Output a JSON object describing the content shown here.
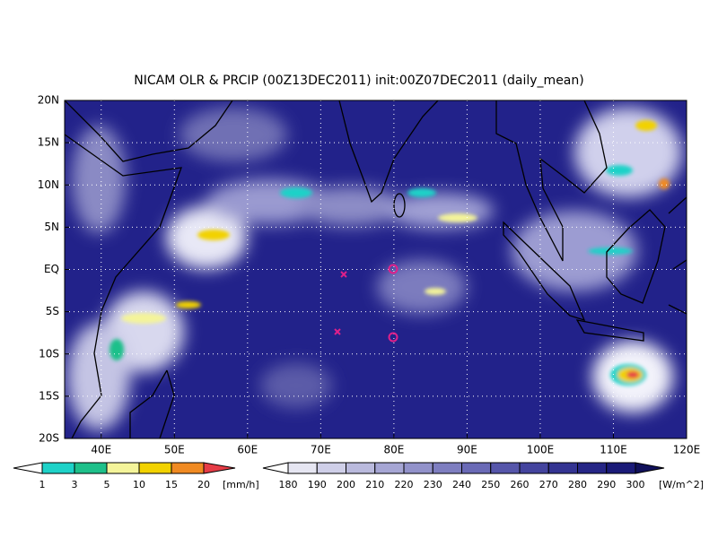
{
  "map": {
    "title": "NICAM OLR & PRCIP (00Z13DEC2011) init:00Z07DEC2011 (daily_mean)",
    "lonlim": [
      35,
      120
    ],
    "latlim": [
      -20,
      20
    ],
    "lonticks": [
      {
        "value": 40,
        "label": "40E"
      },
      {
        "value": 50,
        "label": "50E"
      },
      {
        "value": 60,
        "label": "60E"
      },
      {
        "value": 70,
        "label": "70E"
      },
      {
        "value": 80,
        "label": "80E"
      },
      {
        "value": 90,
        "label": "90E"
      },
      {
        "value": 100,
        "label": "100E"
      },
      {
        "value": 110,
        "label": "110E"
      },
      {
        "value": 120,
        "label": "120E"
      }
    ],
    "latticks": [
      {
        "value": -20,
        "label": "20S"
      },
      {
        "value": -15,
        "label": "15S"
      },
      {
        "value": -10,
        "label": "10S"
      },
      {
        "value": -5,
        "label": "5S"
      },
      {
        "value": 0,
        "label": "EQ"
      },
      {
        "value": 5,
        "label": "5N"
      },
      {
        "value": 10,
        "label": "10N"
      },
      {
        "value": 15,
        "label": "15N"
      },
      {
        "value": 20,
        "label": "20N"
      }
    ],
    "grid": true
  },
  "precip_colorbar": {
    "levels": [
      1,
      3,
      5,
      10,
      15,
      20
    ],
    "colors": [
      "#1ed2c8",
      "#1ec08a",
      "#f4f49a",
      "#f2d200",
      "#f08a22"
    ],
    "under_color": "#ffffff",
    "over_color": "#e63c46",
    "units": "[mm/h]"
  },
  "olr_colorbar": {
    "levels": [
      180,
      190,
      200,
      210,
      220,
      230,
      240,
      250,
      260,
      270,
      280,
      290,
      300
    ],
    "colors": [
      "#e6e6f2",
      "#cfcfe8",
      "#babadd",
      "#a6a6d4",
      "#9292ca",
      "#7e7ec0",
      "#6a6ab6",
      "#5656aa",
      "#44449e",
      "#343492",
      "#262686",
      "#1a1a78"
    ],
    "under_color": "#ffffff",
    "over_color": "#10105a",
    "units": "[W/m^2]"
  }
}
